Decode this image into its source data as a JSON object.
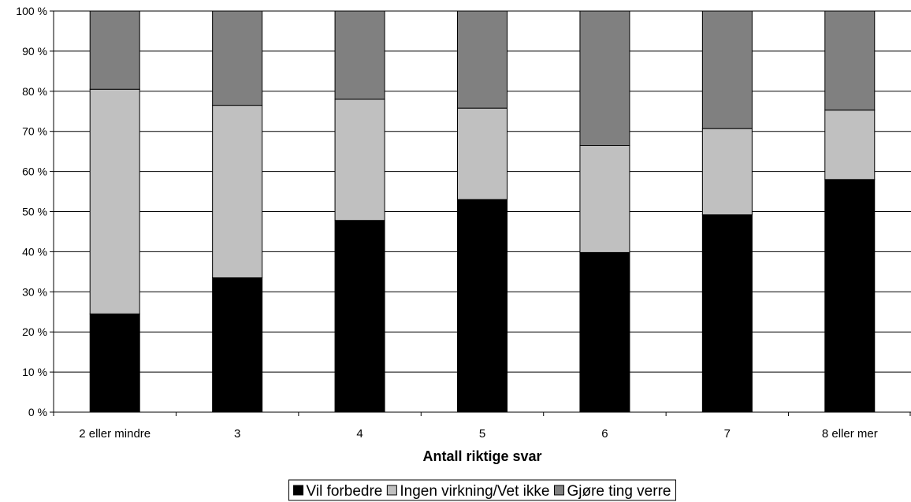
{
  "chart_data": {
    "type": "bar",
    "stacked": true,
    "percent_stacked": true,
    "xlabel": "Antall riktige svar",
    "categories": [
      "2 eller mindre",
      "3",
      "4",
      "5",
      "6",
      "7",
      "8 eller mer"
    ],
    "series": [
      {
        "name": "Vil forbedre",
        "color": "#000000",
        "values": [
          24.5,
          33.5,
          47.8,
          53.0,
          39.8,
          49.2,
          58.0
        ]
      },
      {
        "name": "Ingen virkning/Vet ikke",
        "color": "#c0c0c0",
        "values": [
          56.0,
          43.0,
          30.2,
          22.8,
          26.7,
          21.5,
          17.3
        ]
      },
      {
        "name": "Gjøre ting verre",
        "color": "#808080",
        "values": [
          19.5,
          23.5,
          22.0,
          24.2,
          33.5,
          29.3,
          24.7
        ]
      }
    ],
    "ylim": [
      0,
      100
    ],
    "yticks": [
      0,
      10,
      20,
      30,
      40,
      50,
      60,
      70,
      80,
      90,
      100
    ],
    "ytick_suffix": " %",
    "grid": true,
    "legend_position": "bottom"
  }
}
